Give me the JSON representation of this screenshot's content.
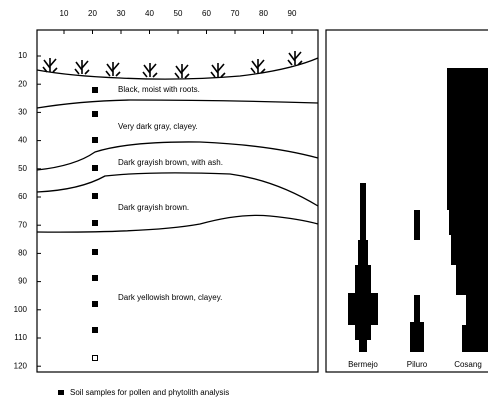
{
  "top_axis": {
    "ticks": [
      "10",
      "20",
      "30",
      "40",
      "50",
      "60",
      "70",
      "80",
      "90"
    ]
  },
  "depth_axis": {
    "ticks": [
      "10",
      "20",
      "30",
      "40",
      "50",
      "60",
      "70",
      "80",
      "90",
      "100",
      "110",
      "120"
    ]
  },
  "layers": [
    "Black, moist with roots.",
    "Very dark gray, clayey.",
    "Dark grayish brown, with ash.",
    "Dark grayish brown.",
    "Dark yellowish brown, clayey."
  ],
  "taxa": [
    "Bermejo",
    "Piluro",
    "Cosang"
  ],
  "legend": {
    "label": "Soil samples for pollen and phytolith analysis"
  }
}
